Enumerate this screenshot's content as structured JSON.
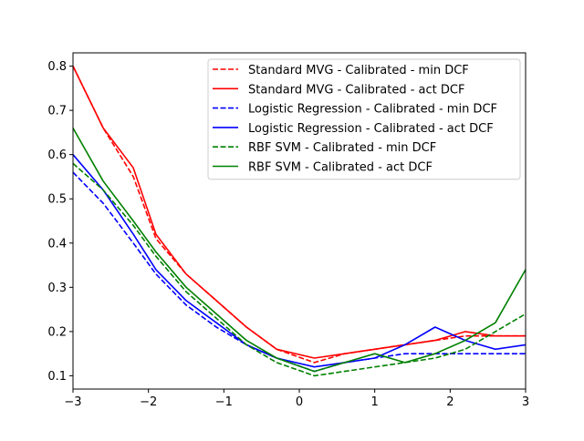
{
  "chart_data": {
    "type": "line",
    "title": "",
    "xlabel": "",
    "ylabel": "",
    "xlim": [
      -3,
      3
    ],
    "ylim": [
      0.07,
      0.83
    ],
    "xticks": [
      -3,
      -2,
      -1,
      0,
      1,
      2,
      3
    ],
    "xtick_labels": [
      "−3",
      "−2",
      "−1",
      "0",
      "1",
      "2",
      "3"
    ],
    "yticks": [
      0.1,
      0.2,
      0.3,
      0.4,
      0.5,
      0.6,
      0.7,
      0.8
    ],
    "ytick_labels": [
      "0.1",
      "0.2",
      "0.3",
      "0.4",
      "0.5",
      "0.6",
      "0.7",
      "0.8"
    ],
    "grid": false,
    "legend_position": "top-right",
    "x": [
      -3.0,
      -2.6,
      -2.2,
      -1.9,
      -1.5,
      -1.1,
      -0.7,
      -0.3,
      0.2,
      0.6,
      1.0,
      1.4,
      1.8,
      2.2,
      2.6,
      3.0
    ],
    "series": [
      {
        "name": "Standard MVG - Calibrated - min DCF",
        "color": "#ff0000",
        "dash": "dashed",
        "values": [
          0.8,
          0.66,
          0.55,
          0.41,
          0.33,
          0.27,
          0.21,
          0.16,
          0.13,
          0.15,
          0.16,
          0.17,
          0.18,
          0.19,
          0.19,
          0.19
        ]
      },
      {
        "name": "Standard MVG - Calibrated - act DCF",
        "color": "#ff0000",
        "dash": "solid",
        "values": [
          0.8,
          0.66,
          0.57,
          0.42,
          0.33,
          0.27,
          0.21,
          0.16,
          0.14,
          0.15,
          0.16,
          0.17,
          0.18,
          0.2,
          0.19,
          0.19
        ]
      },
      {
        "name": "Logistic Regression - Calibrated - min DCF",
        "color": "#0000ff",
        "dash": "dashed",
        "values": [
          0.56,
          0.49,
          0.4,
          0.33,
          0.26,
          0.21,
          0.17,
          0.14,
          0.11,
          0.13,
          0.14,
          0.15,
          0.15,
          0.15,
          0.15,
          0.15
        ]
      },
      {
        "name": "Logistic Regression - Calibrated - act DCF",
        "color": "#0000ff",
        "dash": "solid",
        "values": [
          0.6,
          0.52,
          0.42,
          0.34,
          0.27,
          0.22,
          0.17,
          0.14,
          0.12,
          0.13,
          0.14,
          0.17,
          0.21,
          0.18,
          0.16,
          0.17
        ]
      },
      {
        "name": "RBF SVM - Calibrated - min DCF",
        "color": "#008000",
        "dash": "dashed",
        "values": [
          0.58,
          0.52,
          0.44,
          0.37,
          0.29,
          0.23,
          0.17,
          0.13,
          0.1,
          0.11,
          0.12,
          0.13,
          0.14,
          0.16,
          0.2,
          0.24
        ]
      },
      {
        "name": "RBF SVM - Calibrated - act DCF",
        "color": "#008000",
        "dash": "solid",
        "values": [
          0.66,
          0.54,
          0.45,
          0.38,
          0.3,
          0.24,
          0.18,
          0.14,
          0.11,
          0.13,
          0.15,
          0.13,
          0.15,
          0.18,
          0.22,
          0.34
        ]
      }
    ]
  }
}
